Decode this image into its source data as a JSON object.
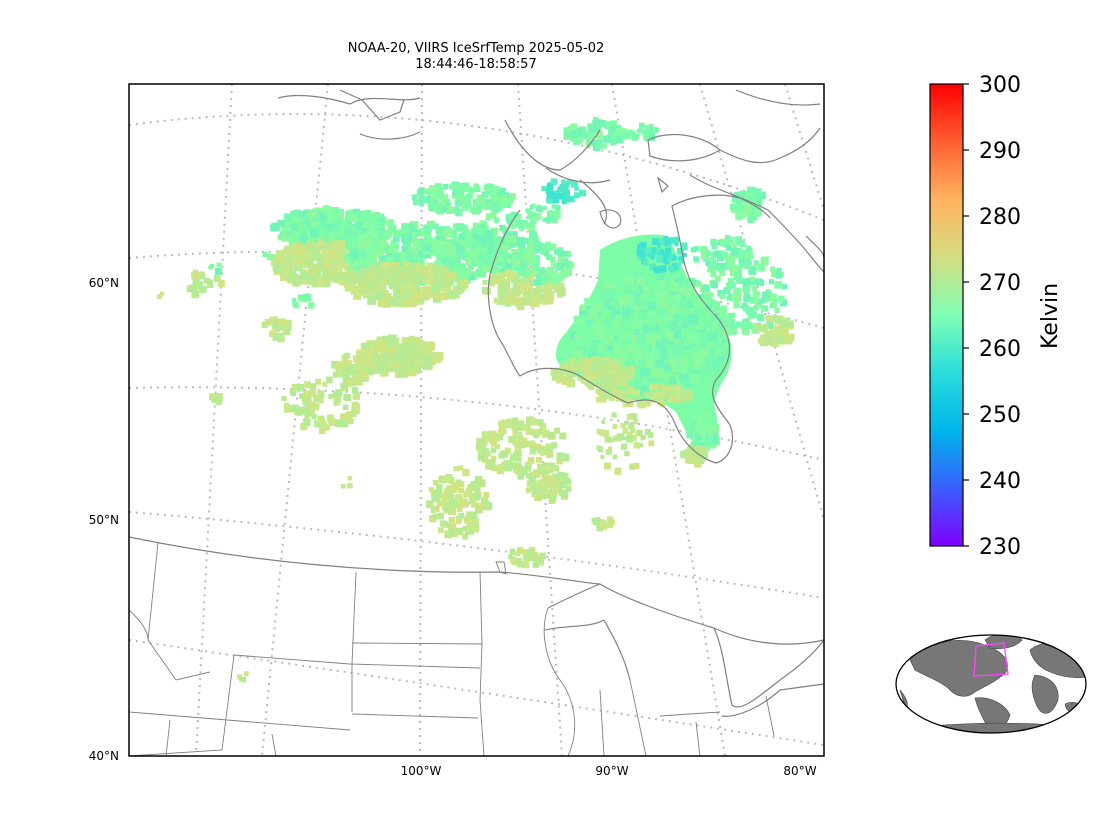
{
  "title": {
    "line1": "NOAA-20, VIIRS IceSrfTemp 2025-05-02",
    "line2": "18:44:46-18:58:57"
  },
  "map": {
    "lat_labels": [
      "60°N",
      "50°N",
      "40°N"
    ],
    "lon_labels": [
      "100°W",
      "90°W",
      "80°W"
    ],
    "projection": "lambert-conformal",
    "gridlines": "dotted",
    "coastline_color": "#808080",
    "gridline_color": "#bbbbbb"
  },
  "colorbar": {
    "label": "Kelvin",
    "ticks": [
      "300",
      "290",
      "280",
      "270",
      "260",
      "250",
      "240",
      "230"
    ],
    "range": [
      230,
      300
    ],
    "colormap": "rainbow",
    "colors": [
      "#7f00ff",
      "#3a5efc",
      "#00b5eb",
      "#2adddd",
      "#80ffb4",
      "#d4dd80",
      "#ffb360",
      "#ff5e30",
      "#ff0000"
    ]
  },
  "inset": {
    "region_box_color": "#ff44ff",
    "land_color": "#777777",
    "water_color": "#ffffff"
  },
  "data_colors": {
    "dominant": "#7dfca8",
    "warm": "#c8e88a",
    "cold": "#3fe3cf"
  }
}
